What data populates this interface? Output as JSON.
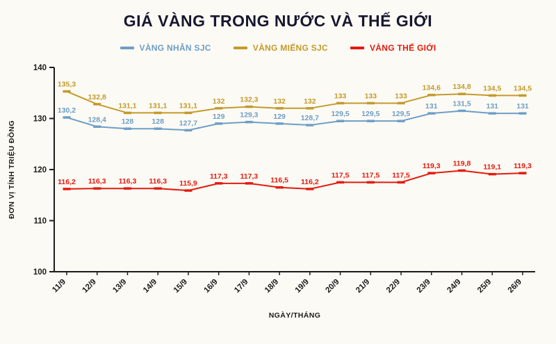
{
  "chart_data": {
    "type": "line",
    "title": "GIÁ VÀNG TRONG NƯỚC VÀ THẾ GIỚI",
    "xlabel": "NGÀY/THÁNG",
    "ylabel": "ĐƠN VỊ TÍNH TRIỆU ĐỒNG",
    "ylim": [
      100,
      140
    ],
    "yticks": [
      100,
      110,
      120,
      130,
      140
    ],
    "grid": false,
    "legend_position": "top",
    "decimal_separator": ",",
    "categories": [
      "11/9",
      "12/9",
      "13/9",
      "14/9",
      "15/9",
      "16/9",
      "17/9",
      "18/9",
      "19/9",
      "20/9",
      "21/9",
      "22/9",
      "23/9",
      "24/9",
      "25/9",
      "26/9"
    ],
    "series": [
      {
        "name": "VÀNG NHẪN SJC",
        "color": "#6d9ec7",
        "values": [
          130.2,
          128.4,
          128,
          128,
          127.7,
          129,
          129.3,
          129,
          128.7,
          129.5,
          129.5,
          129.5,
          131,
          131.5,
          131,
          131
        ]
      },
      {
        "name": "VÀNG MIẾNG SJC",
        "color": "#c39a2b",
        "values": [
          135.3,
          132.8,
          131.1,
          131.1,
          131.1,
          132,
          132.3,
          132,
          132,
          133,
          133,
          133,
          134.6,
          134.8,
          134.5,
          134.5
        ]
      },
      {
        "name": "VÀNG THẾ GIỚI",
        "color": "#e41a0d",
        "values": [
          116.2,
          116.3,
          116.3,
          116.3,
          115.9,
          117.3,
          117.3,
          116.5,
          116.2,
          117.5,
          117.5,
          117.5,
          119.3,
          119.8,
          119.1,
          119.3
        ]
      }
    ],
    "colors": {
      "background": "#fcfaf4",
      "axis": "#1b1b1b",
      "title": "#17172f"
    }
  }
}
